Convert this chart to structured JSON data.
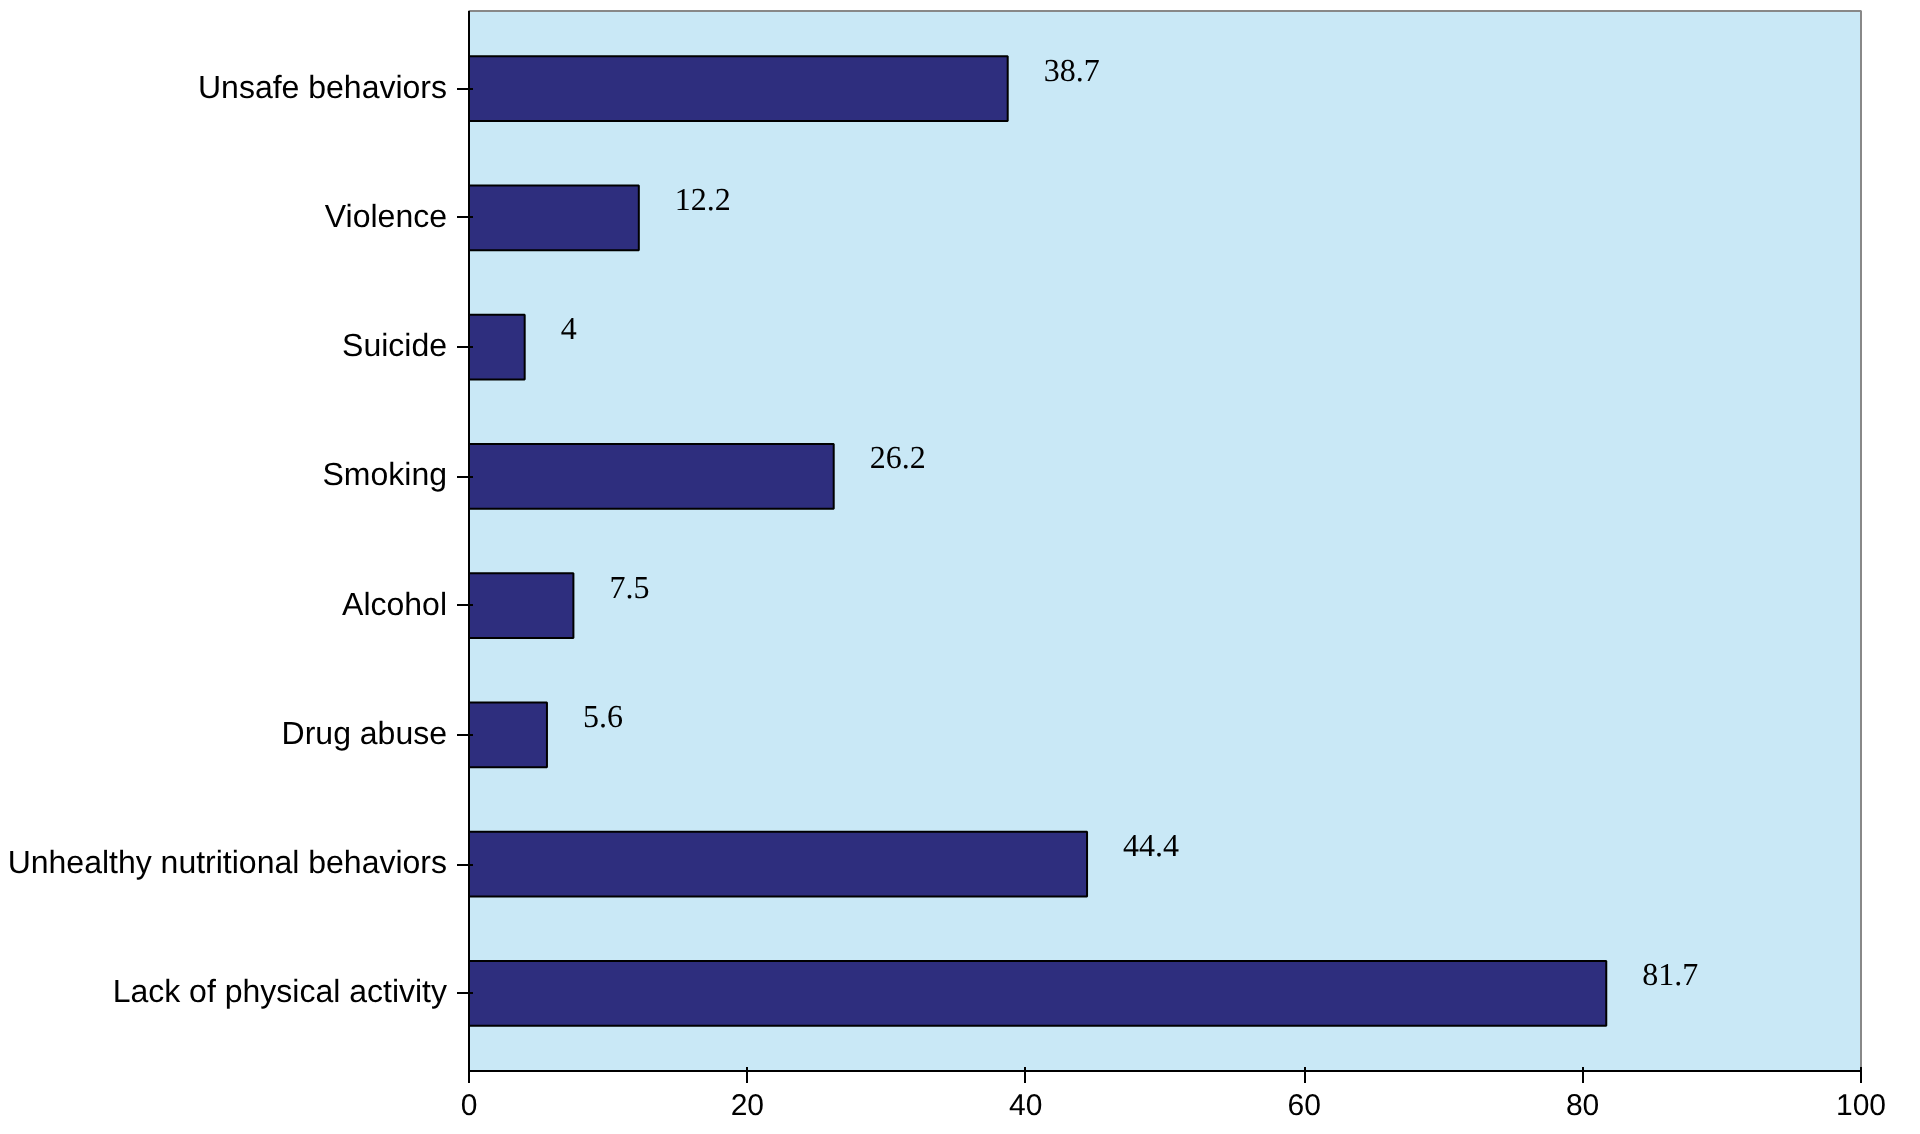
{
  "chart_data": {
    "type": "bar",
    "orientation": "horizontal",
    "categories": [
      "Unsafe behaviors",
      "Violence",
      "Suicide",
      "Smoking",
      "Alcohol",
      "Drug abuse",
      "Unhealthy nutritional behaviors",
      "Lack of physical activity"
    ],
    "values": [
      38.7,
      12.2,
      4,
      26.2,
      7.5,
      5.6,
      44.4,
      81.7
    ],
    "color": "#2e2e7e",
    "xlim": [
      0,
      100
    ],
    "xticks": [
      0,
      20,
      40,
      60,
      80,
      100
    ],
    "grid": false,
    "data_labels": true
  }
}
